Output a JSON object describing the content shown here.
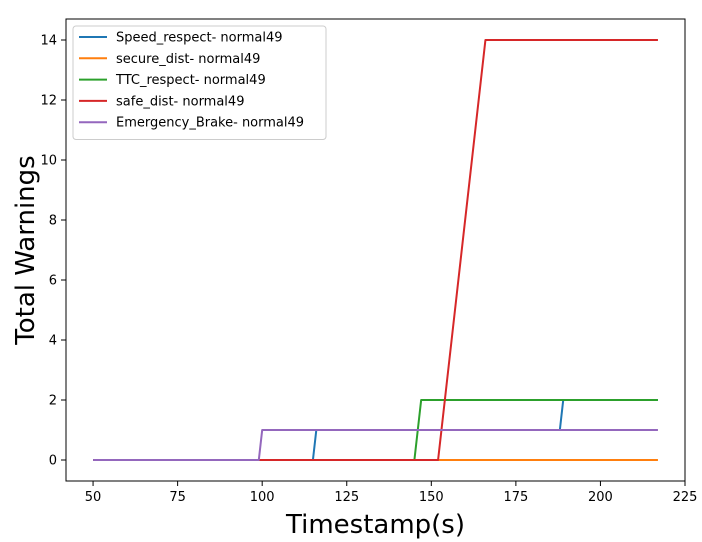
{
  "chart_data": {
    "type": "line",
    "title": "",
    "xlabel": "Timestamp(s)",
    "ylabel": "Total Warnings",
    "xlim": [
      42,
      225
    ],
    "ylim": [
      -0.7,
      14.7
    ],
    "xticks": [
      50,
      75,
      100,
      125,
      150,
      175,
      200,
      225
    ],
    "yticks": [
      0,
      2,
      4,
      6,
      8,
      10,
      12,
      14
    ],
    "grid": false,
    "legend_position": "top-left",
    "series": [
      {
        "name": "Speed_respect- normal49",
        "color": "#1f77b4",
        "x": [
          50,
          115,
          116,
          188,
          189,
          217
        ],
        "y": [
          0,
          0,
          1,
          1,
          2,
          2
        ]
      },
      {
        "name": "secure_dist- normal49",
        "color": "#ff7f0e",
        "x": [
          50,
          217
        ],
        "y": [
          0,
          0
        ]
      },
      {
        "name": "TTC_respect- normal49",
        "color": "#2ca02c",
        "x": [
          50,
          145,
          147,
          217
        ],
        "y": [
          0,
          0,
          2,
          2
        ]
      },
      {
        "name": "safe_dist- normal49",
        "color": "#d62728",
        "x": [
          50,
          152,
          166,
          217
        ],
        "y": [
          0,
          0,
          14,
          14
        ]
      },
      {
        "name": "Emergency_Brake- normal49",
        "color": "#9467bd",
        "x": [
          50,
          99,
          100,
          217
        ],
        "y": [
          0,
          0,
          1,
          1
        ]
      }
    ]
  }
}
